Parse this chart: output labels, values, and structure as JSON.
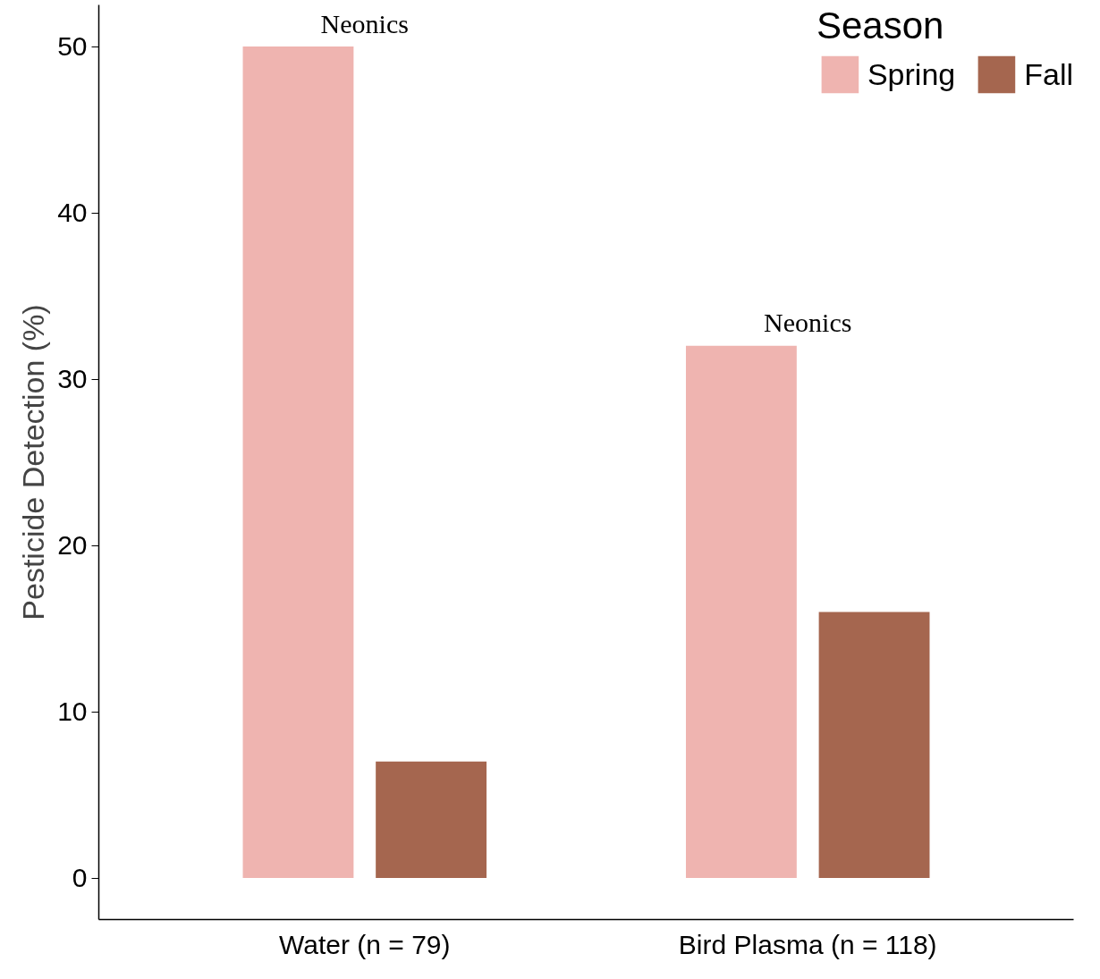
{
  "chart_data": {
    "type": "bar",
    "categories": [
      "Water (n = 79)",
      "Bird Plasma (n = 118)"
    ],
    "ylabel": "Pesticide Detection (%)",
    "legend_title": "Season",
    "series": [
      {
        "name": "Spring",
        "color": "#efb4b0",
        "values": [
          50,
          32
        ]
      },
      {
        "name": "Fall",
        "color": "#a5664f",
        "values": [
          7,
          16
        ]
      }
    ],
    "ylim": [
      -2.5,
      52.5
    ],
    "yticks": [
      0,
      10,
      20,
      30,
      40,
      50
    ],
    "grid": false,
    "legend": "top right",
    "annotations": [
      "Neonics",
      "Neonics"
    ]
  }
}
